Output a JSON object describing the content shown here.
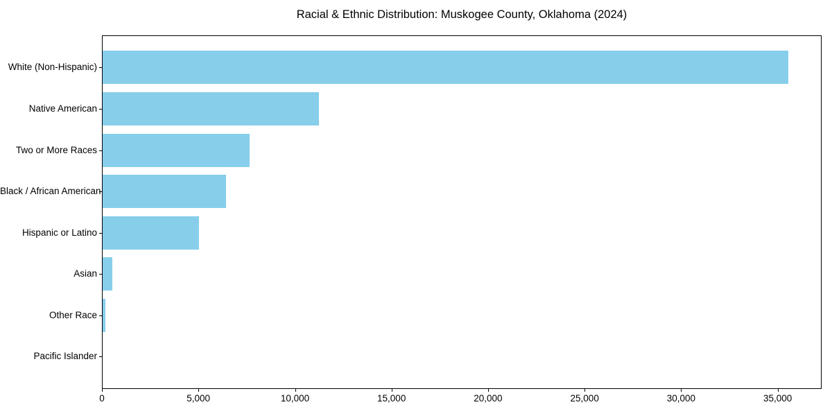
{
  "page": {
    "background": "#ffffff",
    "text_color": "#000000",
    "spine_color": "#000000"
  },
  "chart_data": {
    "type": "bar",
    "orientation": "horizontal",
    "title": "Racial & Ethnic Distribution: Muskogee County, Oklahoma (2024)",
    "categories": [
      "White (Non-Hispanic)",
      "Native American",
      "Two or More Races",
      "Black / African American",
      "Hispanic or Latino",
      "Asian",
      "Other Race",
      "Pacific Islander"
    ],
    "values": [
      35500,
      11200,
      7600,
      6400,
      5000,
      500,
      150,
      0
    ],
    "bar_color": "#87CEEB",
    "bar_height_fraction": 0.8,
    "xlabel": "",
    "ylabel": "",
    "xlim": [
      0,
      37275
    ],
    "x_ticks": [
      0,
      5000,
      10000,
      15000,
      20000,
      25000,
      30000,
      35000
    ],
    "x_tick_labels": [
      "0",
      "5,000",
      "10,000",
      "15,000",
      "20,000",
      "25,000",
      "30,000",
      "35,000"
    ],
    "grid": false,
    "legend_position": "none"
  }
}
